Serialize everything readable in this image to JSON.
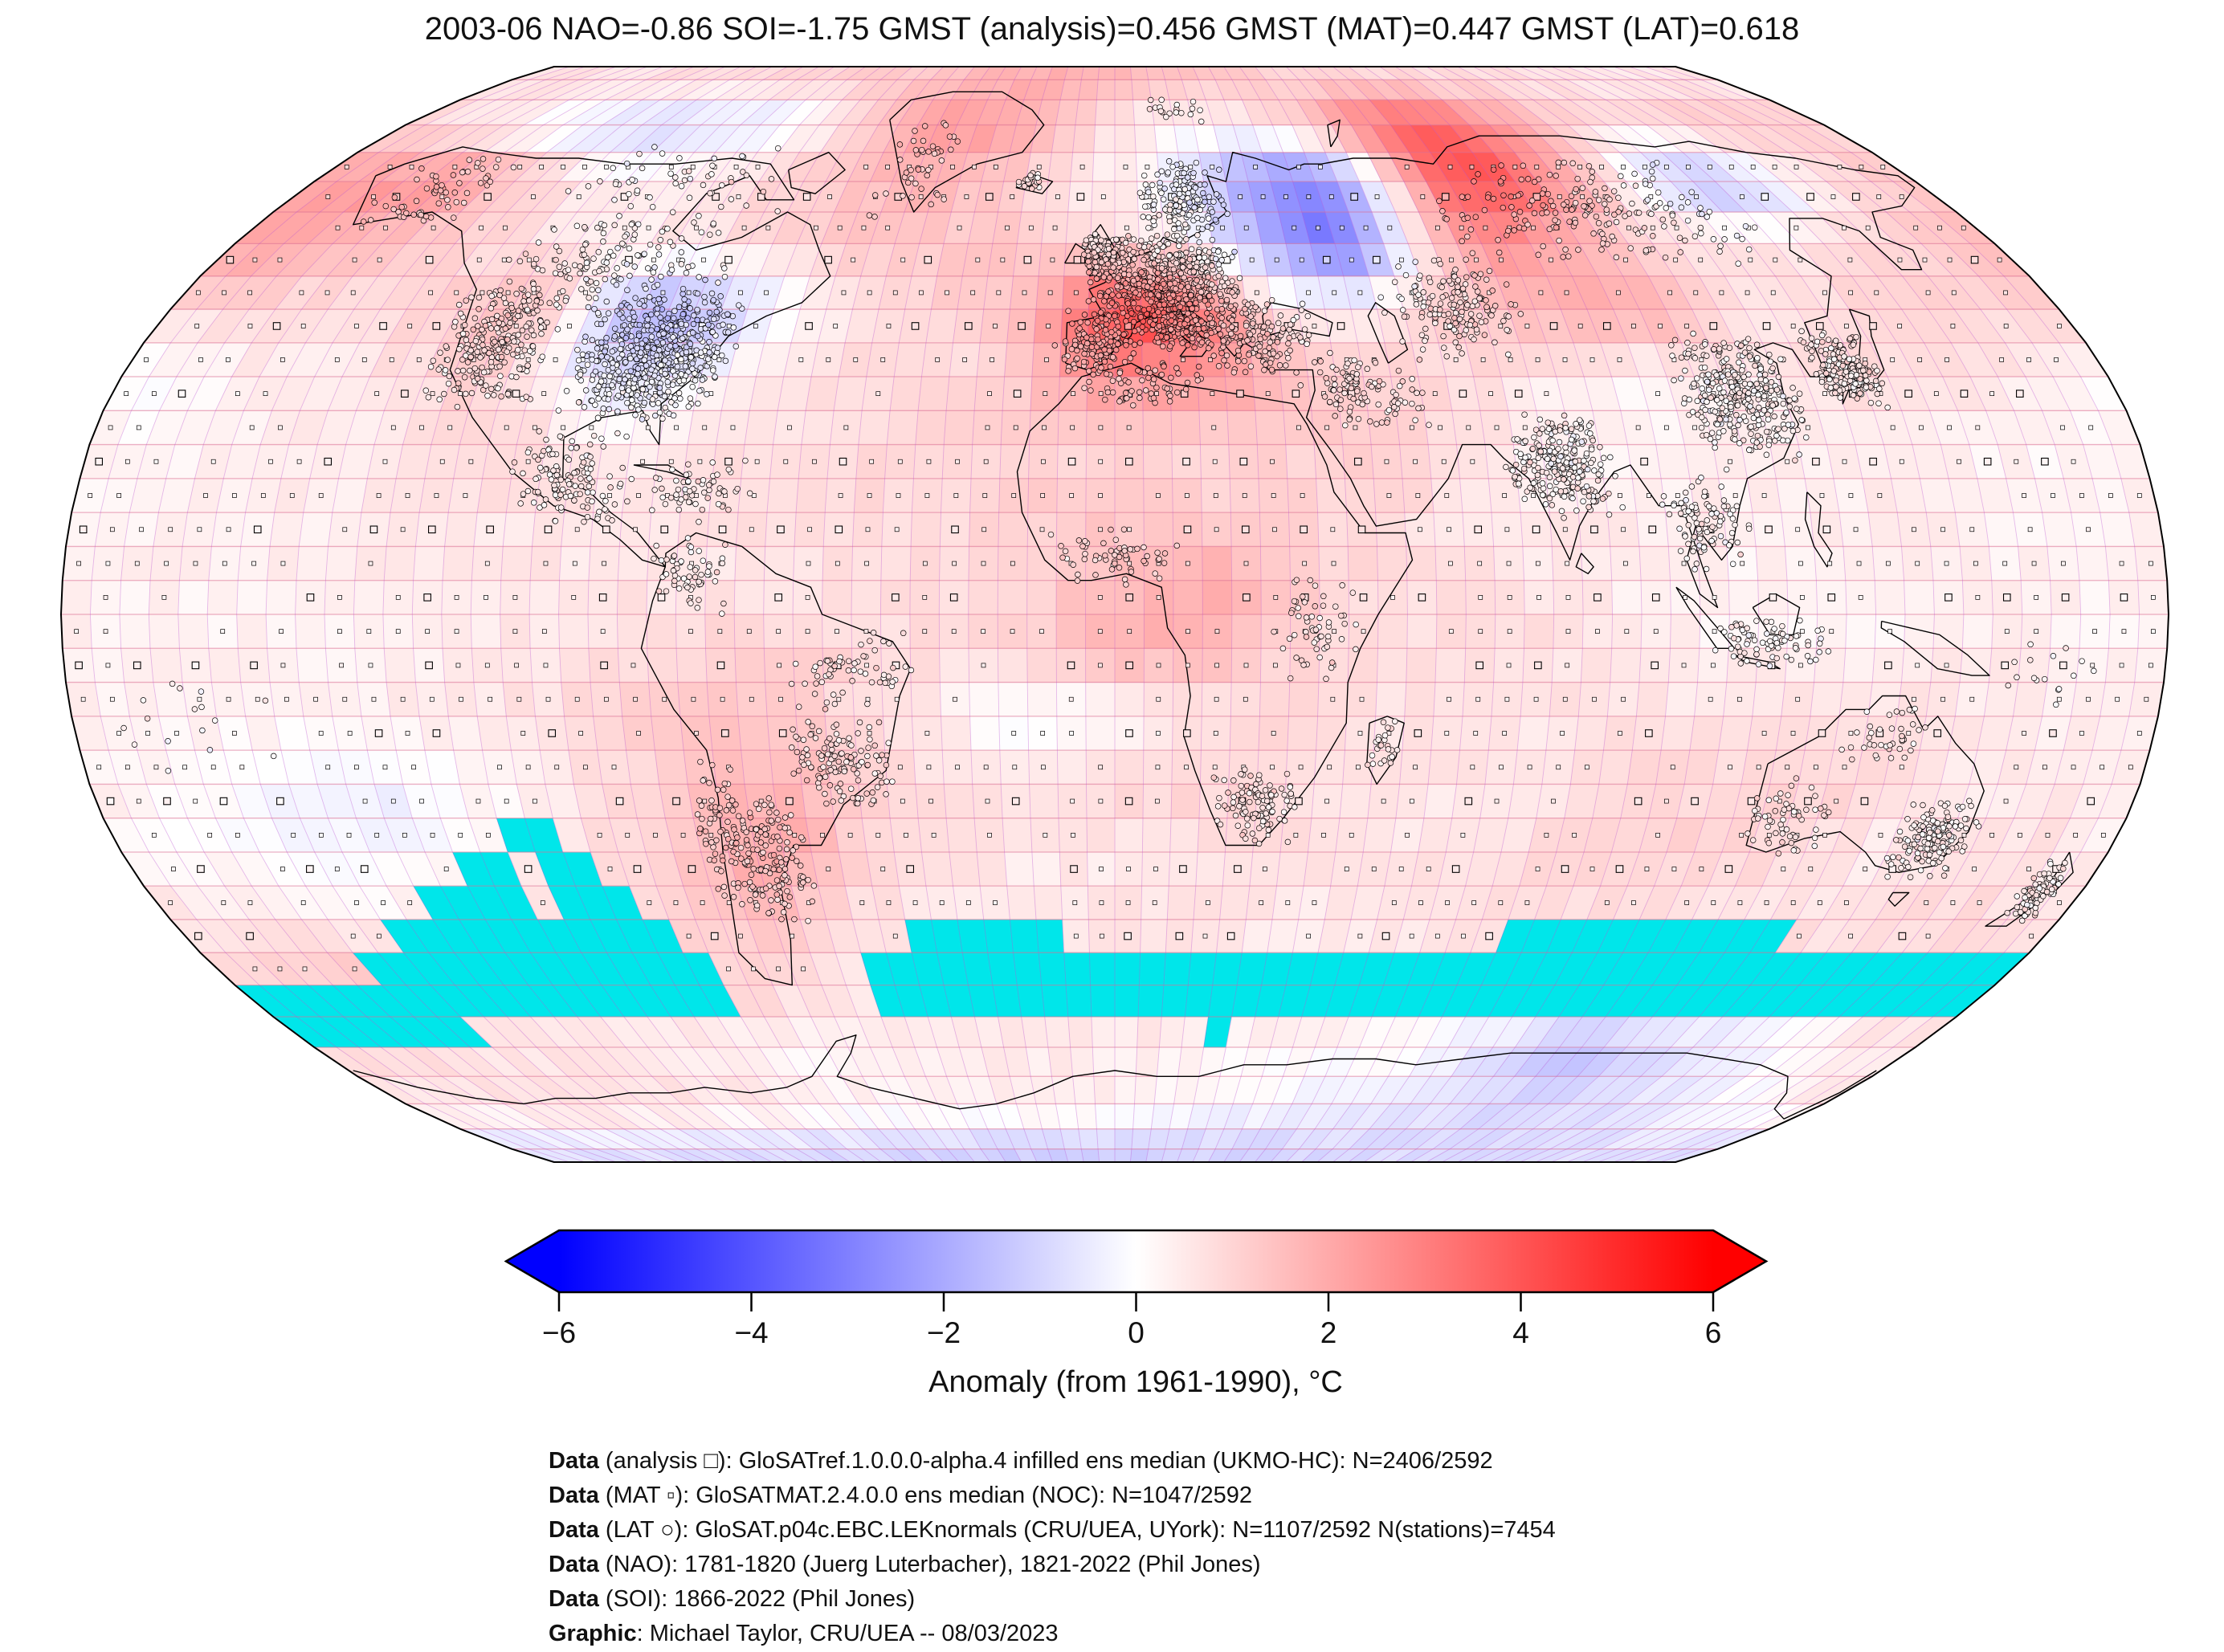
{
  "figure": {
    "title": "2003-06 NAO=-0.86 SOI=-1.75 GMST (analysis)=0.456 GMST (MAT)=0.447 GMST (LAT)=0.618",
    "stats": {
      "period": "2003-06",
      "NAO": -0.86,
      "SOI": -1.75,
      "GMST_analysis": 0.456,
      "GMST_MAT": 0.447,
      "GMST_LAT": 0.618
    }
  },
  "captions": [
    {
      "bold": "Data",
      "rest": " (analysis □): GloSATref.1.0.0.0-alpha.4 infilled ens median (UKMO-HC): N=2406/2592"
    },
    {
      "bold": "Data",
      "rest": " (MAT ▫): GloSATMAT.2.4.0.0 ens median (NOC): N=1047/2592"
    },
    {
      "bold": "Data",
      "rest": " (LAT ○): GloSAT.p04c.EBC.LEKnormals (CRU/UEA, UYork): N=1107/2592 N(stations)=7454"
    },
    {
      "bold": "Data",
      "rest": " (NAO): 1781-1820 (Juerg Luterbacher), 1821-2022 (Phil Jones)"
    },
    {
      "bold": "Data",
      "rest": " (SOI): 1866-2022 (Phil Jones)"
    },
    {
      "bold": "Graphic",
      "rest": ": Michael Taylor, CRU/UEA -- 08/03/2023"
    }
  ],
  "chart_data": {
    "type": "heatmap",
    "title": "2003-06 NAO=-0.86 SOI=-1.75 GMST (analysis)=0.456 GMST (MAT)=0.447 GMST (LAT)=0.618",
    "projection": "robinson",
    "colorbar": {
      "label": "Anomaly (from 1961-1990), °C",
      "min": -6,
      "max": 6,
      "ticks": [
        "−6",
        "−4",
        "−2",
        "0",
        "2",
        "4",
        "6"
      ],
      "tick_values": [
        -6,
        -4,
        -2,
        0,
        2,
        4,
        6
      ],
      "color_neg": "#0000ff",
      "color_mid": "#ffffff",
      "color_pos": "#ff0000"
    },
    "missing_color": "#00e6ea",
    "missing_boxes": [
      [
        -110,
        -100,
        -35,
        -30
      ],
      [
        -118,
        -108,
        -40,
        -35
      ],
      [
        -104,
        -96,
        -40,
        -35
      ],
      [
        -128,
        -108,
        -45,
        -40
      ],
      [
        -104,
        -92,
        -45,
        -40
      ],
      [
        -140,
        -87,
        -50,
        -45
      ],
      [
        -152,
        -78,
        -55,
        -50
      ],
      [
        -178,
        -82,
        -62,
        -55
      ],
      [
        -178,
        -140,
        -66,
        -62
      ],
      [
        -40,
        -8,
        -52,
        -46
      ],
      [
        -52,
        8,
        -60,
        -52
      ],
      [
        75,
        93,
        -50,
        -45
      ],
      [
        93,
        130,
        -52,
        -45
      ],
      [
        8,
        179,
        -60,
        -52
      ],
      [
        18,
        26,
        -66,
        -60
      ]
    ],
    "grid": {
      "lat_centers_start": 85,
      "lat_step": -10,
      "lon_centers_start": -175,
      "lon_step": 10,
      "values": [
        [
          0.6,
          0.6,
          0.6,
          0.7,
          0.7,
          0.8,
          0.8,
          0.9,
          0.9,
          1.0,
          1.1,
          1.2,
          1.4,
          1.5,
          1.7,
          1.8,
          1.8,
          1.7,
          1.6,
          1.5,
          1.3,
          1.2,
          1.1,
          1.0,
          1.0,
          0.9,
          0.9,
          0.8,
          0.8,
          0.7,
          0.7,
          0.6,
          0.6,
          0.6,
          0.5,
          0.5
        ],
        [
          0.8,
          0.6,
          0.3,
          -0.2,
          -0.6,
          -0.8,
          -0.9,
          -0.8,
          -0.7,
          -0.5,
          0.2,
          1.0,
          1.8,
          2.2,
          2.3,
          2.0,
          1.5,
          0.8,
          0.4,
          0.2,
          0.3,
          0.5,
          1.0,
          2.0,
          3.2,
          3.6,
          3.4,
          2.6,
          1.8,
          1.2,
          0.8,
          0.8,
          1.0,
          1.2,
          1.2,
          1.0
        ],
        [
          2.2,
          2.4,
          2.6,
          2.2,
          1.4,
          0.8,
          0.4,
          0.3,
          0.5,
          0.8,
          1.0,
          1.2,
          1.5,
          1.8,
          1.6,
          1.2,
          0.8,
          0.4,
          0.2,
          -0.6,
          -1.6,
          -2.6,
          -2.9,
          -1.2,
          1.5,
          4.0,
          4.3,
          3.0,
          1.5,
          0.2,
          -1.3,
          -1.7,
          -0.8,
          0.2,
          0.8,
          1.2
        ],
        [
          2.2,
          2.0,
          1.6,
          1.2,
          1.0,
          0.8,
          0.6,
          0.4,
          0.5,
          0.6,
          0.8,
          1.0,
          1.2,
          1.2,
          1.2,
          1.3,
          1.2,
          1.0,
          0.8,
          0.3,
          -1.2,
          -2.6,
          -3.4,
          -1.6,
          1.2,
          2.5,
          2.2,
          1.5,
          1.2,
          0.8,
          0.5,
          0.6,
          0.8,
          1.0,
          1.2,
          1.6
        ],
        [
          0.8,
          0.8,
          0.7,
          0.8,
          0.9,
          1.2,
          1.5,
          0.8,
          -1.4,
          -2.0,
          -1.2,
          -0.4,
          0.4,
          0.8,
          1.0,
          1.2,
          1.8,
          3.6,
          4.8,
          3.4,
          1.6,
          0.4,
          0.3,
          0.8,
          1.2,
          1.5,
          1.8,
          1.9,
          1.8,
          1.0,
          0.6,
          0.8,
          0.9,
          1.0,
          1.0,
          0.9
        ],
        [
          -0.2,
          0.2,
          0.4,
          0.3,
          0.5,
          0.8,
          1.2,
          0.4,
          -0.5,
          -0.8,
          -0.2,
          0.4,
          0.6,
          0.8,
          0.8,
          0.8,
          1.4,
          2.4,
          2.6,
          2.6,
          2.2,
          1.5,
          1.0,
          0.9,
          0.8,
          0.5,
          0.3,
          0.2,
          0.3,
          0.4,
          0.6,
          0.8,
          0.8,
          0.6,
          0.4,
          0.0
        ],
        [
          0.2,
          0.3,
          0.3,
          0.4,
          0.4,
          0.5,
          0.7,
          0.9,
          0.6,
          0.5,
          0.6,
          0.7,
          0.8,
          0.8,
          0.9,
          1.0,
          1.0,
          0.9,
          1.0,
          0.8,
          1.0,
          1.1,
          1.2,
          1.0,
          0.6,
          0.4,
          0.3,
          0.3,
          0.3,
          0.4,
          0.4,
          0.4,
          0.3,
          0.3,
          0.2,
          0.2
        ],
        [
          0.3,
          0.3,
          0.4,
          0.4,
          0.4,
          0.5,
          0.5,
          0.6,
          0.6,
          0.6,
          0.6,
          0.7,
          0.7,
          0.8,
          0.8,
          0.9,
          1.1,
          1.2,
          1.2,
          1.1,
          1.0,
          0.9,
          0.8,
          0.7,
          0.6,
          0.5,
          0.5,
          0.4,
          0.4,
          0.4,
          0.4,
          0.4,
          0.4,
          0.3,
          0.3,
          0.3
        ],
        [
          0.3,
          0.3,
          0.3,
          0.4,
          0.4,
          0.4,
          0.4,
          0.5,
          0.5,
          0.5,
          0.6,
          0.6,
          0.6,
          0.6,
          0.7,
          0.8,
          1.0,
          1.4,
          1.8,
          2.0,
          1.6,
          1.1,
          0.8,
          0.7,
          0.6,
          0.5,
          0.4,
          0.3,
          0.3,
          0.3,
          0.3,
          0.3,
          0.3,
          0.3,
          0.3,
          0.3
        ],
        [
          0.3,
          0.3,
          0.3,
          0.3,
          0.3,
          0.4,
          0.4,
          0.5,
          0.6,
          0.8,
          0.9,
          1.0,
          1.0,
          0.9,
          0.8,
          0.8,
          1.0,
          1.5,
          1.8,
          1.6,
          1.2,
          0.9,
          0.8,
          0.8,
          0.8,
          0.7,
          0.6,
          0.4,
          0.3,
          0.3,
          0.3,
          0.3,
          0.4,
          0.4,
          0.3,
          0.3
        ],
        [
          0.4,
          0.3,
          0.3,
          0.3,
          0.4,
          0.4,
          0.5,
          0.6,
          0.8,
          1.0,
          1.2,
          1.2,
          1.1,
          0.9,
          0.6,
          0.2,
          -0.2,
          0.0,
          0.3,
          0.6,
          0.8,
          0.8,
          0.7,
          0.7,
          0.6,
          0.6,
          0.6,
          0.6,
          0.7,
          0.8,
          0.8,
          0.7,
          0.6,
          0.5,
          0.4,
          0.4
        ],
        [
          0.3,
          0.2,
          0.0,
          -0.3,
          -0.4,
          -0.3,
          0.0,
          0.3,
          0.6,
          0.8,
          1.2,
          1.7,
          1.6,
          1.2,
          0.8,
          0.6,
          0.6,
          0.8,
          0.9,
          1.0,
          1.0,
          0.8,
          0.6,
          0.5,
          0.5,
          0.6,
          0.8,
          0.9,
          0.9,
          1.0,
          1.0,
          0.8,
          0.6,
          0.5,
          0.4,
          0.3
        ],
        [
          0.2,
          0.1,
          0.0,
          -0.2,
          -0.2,
          0.0,
          0.2,
          0.4,
          0.7,
          1.0,
          1.6,
          2.2,
          1.8,
          1.0,
          0.8,
          0.6,
          0.5,
          0.5,
          0.6,
          0.7,
          0.7,
          0.6,
          0.6,
          0.6,
          0.7,
          0.8,
          0.9,
          1.0,
          1.0,
          0.9,
          0.7,
          0.5,
          0.4,
          0.6,
          0.8,
          0.4
        ],
        [
          0.6,
          0.5,
          0.4,
          0.3,
          0.4,
          0.5,
          0.6,
          0.8,
          0.9,
          1.0,
          1.2,
          1.4,
          1.0,
          0.6,
          0.4,
          0.3,
          0.4,
          0.5,
          0.6,
          0.6,
          0.5,
          0.5,
          0.5,
          0.6,
          0.6,
          0.7,
          0.8,
          0.8,
          0.7,
          0.6,
          0.6,
          0.7,
          0.8,
          0.9,
          0.8,
          0.7
        ],
        [
          1.0,
          1.2,
          1.4,
          1.5,
          1.4,
          1.2,
          1.0,
          0.8,
          0.8,
          0.9,
          1.0,
          0.8,
          0.6,
          0.5,
          0.5,
          0.6,
          0.6,
          0.6,
          0.7,
          0.7,
          0.6,
          0.6,
          0.5,
          0.5,
          0.5,
          0.5,
          0.6,
          0.6,
          0.6,
          0.7,
          0.7,
          0.8,
          0.8,
          0.8,
          0.9,
          1.0
        ],
        [
          0.8,
          0.8,
          0.7,
          0.6,
          0.5,
          0.5,
          0.4,
          0.4,
          0.4,
          0.3,
          0.2,
          0.2,
          0.3,
          0.4,
          0.4,
          0.4,
          0.5,
          0.5,
          0.5,
          0.4,
          0.3,
          0.2,
          0.2,
          0.1,
          0.0,
          -0.3,
          -0.6,
          -1.2,
          -1.5,
          -1.3,
          -0.9,
          -0.6,
          -0.3,
          0.0,
          0.3,
          0.6
        ],
        [
          0.6,
          0.6,
          0.7,
          0.8,
          0.8,
          0.8,
          0.8,
          0.7,
          0.6,
          0.5,
          0.4,
          0.3,
          0.3,
          0.3,
          0.4,
          0.4,
          0.4,
          0.3,
          0.2,
          0.1,
          0.0,
          -0.1,
          -0.2,
          -0.3,
          -0.4,
          -0.5,
          -0.6,
          -0.8,
          -0.9,
          -0.8,
          -0.7,
          -0.5,
          -0.3,
          -0.1,
          0.2,
          0.4
        ],
        [
          -0.7,
          -0.7,
          -0.7,
          -0.7,
          -0.7,
          -0.8,
          -0.8,
          -0.8,
          -0.8,
          -0.9,
          -0.9,
          -1.0,
          -1.0,
          -1.0,
          -1.1,
          -1.1,
          -1.1,
          -1.1,
          -1.1,
          -1.1,
          -1.0,
          -1.0,
          -1.0,
          -0.9,
          -0.9,
          -0.9,
          -0.8,
          -0.8,
          -0.8,
          -0.8,
          -0.8,
          -0.8,
          -0.7,
          -0.7,
          -0.7,
          -0.7
        ]
      ]
    },
    "station_clusters": [
      {
        "lon": 10,
        "lat": 48,
        "dlon": 16,
        "dlat": 9,
        "n": 650
      },
      {
        "lon": -4,
        "lat": 40,
        "dlon": 8,
        "dlat": 5,
        "n": 130
      },
      {
        "lon": 12,
        "lat": 43,
        "dlon": 6,
        "dlat": 5,
        "n": 110
      },
      {
        "lon": -2,
        "lat": 53,
        "dlon": 5,
        "dlat": 4,
        "n": 130
      },
      {
        "lon": 15,
        "lat": 62,
        "dlon": 10,
        "dlat": 7,
        "n": 170
      },
      {
        "lon": 26,
        "lat": 41,
        "dlon": 12,
        "dlat": 6,
        "n": 160
      },
      {
        "lon": -85,
        "lat": 38,
        "dlon": 15,
        "dlat": 10,
        "n": 620
      },
      {
        "lon": -115,
        "lat": 40,
        "dlon": 12,
        "dlat": 10,
        "n": 260
      },
      {
        "lon": -100,
        "lat": 52,
        "dlon": 25,
        "dlat": 8,
        "n": 150
      },
      {
        "lon": -100,
        "lat": 65,
        "dlon": 30,
        "dlat": 9,
        "n": 60
      },
      {
        "lon": -150,
        "lat": 63,
        "dlon": 12,
        "dlat": 6,
        "n": 60
      },
      {
        "lon": -95,
        "lat": 20,
        "dlon": 12,
        "dlat": 8,
        "n": 130
      },
      {
        "lon": -72,
        "lat": 18,
        "dlon": 10,
        "dlat": 5,
        "n": 60
      },
      {
        "lon": -70,
        "lat": -33,
        "dlon": 5,
        "dlat": 12,
        "n": 90
      },
      {
        "lon": -62,
        "lat": -36,
        "dlon": 8,
        "dlat": 10,
        "n": 130
      },
      {
        "lon": -48,
        "lat": -21,
        "dlon": 10,
        "dlat": 8,
        "n": 130
      },
      {
        "lon": -45,
        "lat": -8,
        "dlon": 12,
        "dlat": 6,
        "n": 60
      },
      {
        "lon": -72,
        "lat": 6,
        "dlon": 8,
        "dlat": 6,
        "n": 60
      },
      {
        "lon": 25,
        "lat": -28,
        "dlon": 8,
        "dlat": 6,
        "n": 110
      },
      {
        "lon": 35,
        "lat": -2,
        "dlon": 8,
        "dlat": 8,
        "n": 60
      },
      {
        "lon": 0,
        "lat": 9,
        "dlon": 12,
        "dlat": 5,
        "n": 60
      },
      {
        "lon": 5,
        "lat": 34,
        "dlon": 12,
        "dlat": 4,
        "n": 70
      },
      {
        "lon": 47,
        "lat": -19,
        "dlon": 3,
        "dlat": 4,
        "n": 25
      },
      {
        "lon": 78,
        "lat": 22,
        "dlon": 10,
        "dlat": 8,
        "n": 260
      },
      {
        "lon": 112,
        "lat": 32,
        "dlon": 12,
        "dlat": 10,
        "n": 360
      },
      {
        "lon": 133,
        "lat": 36,
        "dlon": 6,
        "dlat": 6,
        "n": 210
      },
      {
        "lon": 102,
        "lat": 14,
        "dlon": 8,
        "dlat": 8,
        "n": 100
      },
      {
        "lon": 113,
        "lat": -4,
        "dlon": 14,
        "dlat": 4,
        "n": 80
      },
      {
        "lon": 65,
        "lat": 45,
        "dlon": 15,
        "dlat": 8,
        "n": 160
      },
      {
        "lon": 100,
        "lat": 60,
        "dlon": 35,
        "dlat": 9,
        "n": 210
      },
      {
        "lon": 45,
        "lat": 33,
        "dlon": 12,
        "dlat": 6,
        "n": 110
      },
      {
        "lon": 147,
        "lat": -33,
        "dlon": 8,
        "dlat": 6,
        "n": 160
      },
      {
        "lon": 120,
        "lat": -30,
        "dlon": 8,
        "dlat": 6,
        "n": 60
      },
      {
        "lon": 134,
        "lat": -18,
        "dlon": 8,
        "dlat": 5,
        "n": 40
      },
      {
        "lon": 172,
        "lat": -41,
        "dlon": 4,
        "dlat": 5,
        "n": 90
      },
      {
        "lon": -19,
        "lat": 65,
        "dlon": 4,
        "dlat": 2,
        "n": 25
      },
      {
        "lon": -45,
        "lat": 68,
        "dlon": 9,
        "dlat": 9,
        "n": 45
      },
      {
        "lon": 15,
        "lat": 78,
        "dlon": 12,
        "dlat": 3,
        "n": 18
      },
      {
        "lon": -160,
        "lat": -16,
        "dlon": 18,
        "dlat": 9,
        "n": 16
      },
      {
        "lon": 162,
        "lat": -9,
        "dlon": 14,
        "dlat": 7,
        "n": 16
      }
    ]
  }
}
